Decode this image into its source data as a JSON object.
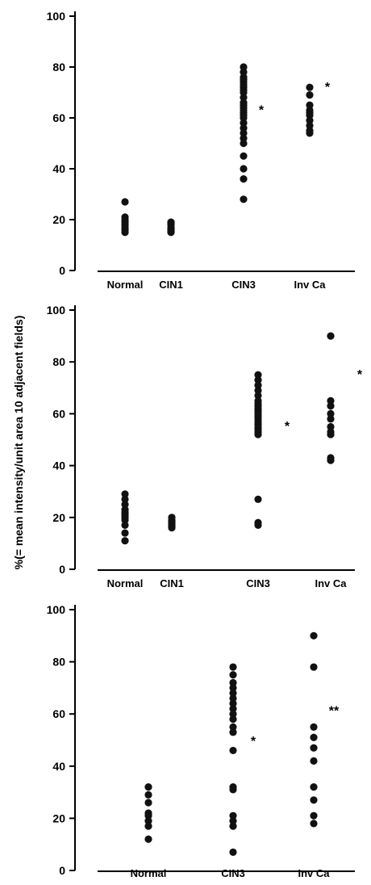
{
  "ylabel": "%(= mean intensity/unit area 10 adjacent fields)",
  "chart_data": [
    {
      "type": "scatter",
      "categories": [
        "Normal",
        "CIN1",
        "CIN3",
        "Inv Ca"
      ],
      "ylim": [
        0,
        100
      ],
      "yticks": [
        "0",
        "20",
        "40",
        "60",
        "80",
        "100"
      ],
      "grid": false,
      "series": [
        {
          "values": [
            27,
            21,
            20,
            19,
            18,
            17,
            16,
            15
          ]
        },
        {
          "values": [
            19,
            18.5,
            18,
            17,
            16.5,
            16,
            15.5,
            15
          ]
        },
        {
          "values": [
            80,
            78,
            76,
            75,
            74,
            73,
            72,
            71,
            70,
            68,
            66,
            65,
            64,
            63,
            62,
            61,
            60,
            58,
            56,
            54,
            52,
            50,
            45,
            40,
            36,
            28
          ]
        },
        {
          "values": [
            72,
            69,
            65,
            63,
            62,
            61,
            59,
            57,
            55,
            54
          ]
        }
      ],
      "annotations": [
        "",
        "",
        "*",
        "*"
      ]
    },
    {
      "type": "scatter",
      "categories": [
        "Normal",
        "CIN1",
        "CIN3",
        "Inv Ca"
      ],
      "ylim": [
        0,
        100
      ],
      "yticks": [
        "0",
        "20",
        "40",
        "60",
        "80",
        "100"
      ],
      "grid": false,
      "series": [
        {
          "values": [
            29,
            27,
            25,
            23,
            22,
            21,
            20,
            19,
            17,
            14,
            11
          ]
        },
        {
          "values": [
            20,
            19,
            18.5,
            18,
            17.5,
            17,
            16.5,
            16
          ]
        },
        {
          "values": [
            75,
            73,
            71,
            69,
            67,
            65,
            64,
            63,
            62,
            61,
            60,
            59,
            58,
            57,
            56,
            55,
            54,
            53,
            52,
            27,
            18,
            17
          ]
        },
        {
          "values": [
            90,
            65,
            63,
            60,
            58,
            55,
            53,
            52,
            43,
            42
          ]
        }
      ],
      "annotations": [
        "",
        "",
        "*",
        "*"
      ]
    },
    {
      "type": "scatter",
      "categories": [
        "Normal",
        "CIN3",
        "Inv Ca"
      ],
      "ylim": [
        0,
        100
      ],
      "yticks": [
        "0",
        "20",
        "40",
        "60",
        "80",
        "100"
      ],
      "grid": false,
      "series": [
        {
          "values": [
            32,
            29,
            26,
            22,
            21,
            19,
            17,
            12
          ]
        },
        {
          "values": [
            78,
            75,
            72,
            70,
            68,
            66,
            64,
            62,
            60,
            58,
            55,
            53,
            46,
            32,
            31,
            21,
            19,
            17,
            7
          ]
        },
        {
          "values": [
            90,
            78,
            55,
            51,
            47,
            42,
            32,
            27,
            21,
            18
          ]
        }
      ],
      "annotations": [
        "",
        "*",
        "**"
      ]
    }
  ]
}
